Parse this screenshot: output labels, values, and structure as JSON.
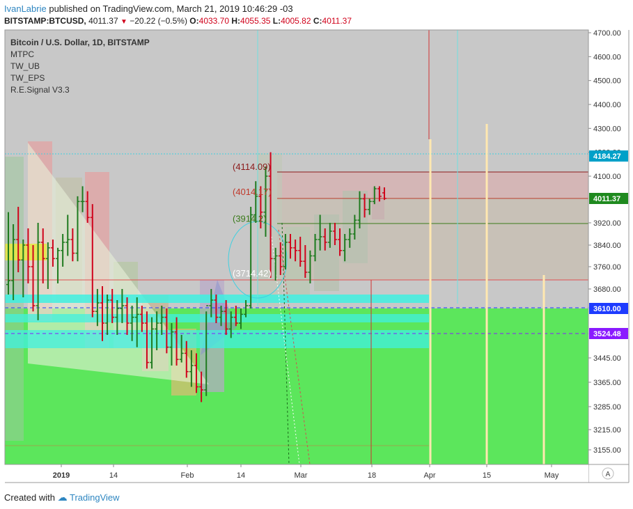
{
  "header": {
    "user": "IvanLabrie",
    "published_text": "published on TradingView.com, March 21, 2019 10:46:29 -03",
    "symbol": "BITSTAMP:BTCUSD,",
    "last": "4011.37",
    "change": "−20.22 (−0.5%)",
    "o_label": "O:",
    "o": "4033.70",
    "h_label": "H:",
    "h": "4055.35",
    "l_label": "L:",
    "l": "4005.82",
    "c_label": "C:",
    "c": "4011.37"
  },
  "legend": {
    "title": "Bitcoin / U.S. Dollar, 1D, BITSTAMP",
    "indicators": [
      "MTPC",
      "TW_UB",
      "TW_EPS",
      "R.E.Signal V3.3"
    ]
  },
  "footer": {
    "created_with": "Created with",
    "brand": "TradingView"
  },
  "colors": {
    "up": "#1f7a1f",
    "down": "#d0021b",
    "zone_green": "#5ce65c",
    "zone_cyan": "#40f0e0",
    "bg": "#c8c8c8"
  },
  "chart_data": {
    "type": "candlestick",
    "y_ticks": [
      "4700.00",
      "4600.00",
      "4500.00",
      "4400.00",
      "4300.00",
      "4200.00",
      "4100.00",
      "3920.00",
      "3840.00",
      "3760.00",
      "3680.00",
      "3445.00",
      "3365.00",
      "3285.00",
      "3215.00",
      "3155.00"
    ],
    "x_ticks": [
      "2019",
      "14",
      "Feb",
      "14",
      "Mar",
      "18",
      "Apr",
      "15",
      "May"
    ],
    "price_badges": [
      {
        "label": "4184.27",
        "value": 4184.27,
        "color": "#00a0c8"
      },
      {
        "label": "4011.37",
        "value": 4011.37,
        "color": "#1f8a1f"
      },
      {
        "label": "3610.00",
        "value": 3610.0,
        "color": "#1e3cff"
      },
      {
        "label": "3524.48",
        "value": 3524.48,
        "color": "#8a1aff"
      }
    ],
    "levels": [
      {
        "label": "(4114.09)",
        "value": 4114.09,
        "color": "#8b1a1a"
      },
      {
        "label": "(4014.17)",
        "value": 4014.17,
        "color": "#c0392b"
      },
      {
        "label": "(3914.2)",
        "value": 3914.2,
        "color": "#3a7a1a"
      },
      {
        "label": "(3714.42)",
        "value": 3714.42,
        "color": "#ffffff"
      }
    ],
    "series": [
      {
        "name": "BITSTAMP:BTCUSD",
        "points": [
          [
            3696,
            3960,
            3660,
            3710
          ],
          [
            3710,
            3915,
            3640,
            3860
          ],
          [
            3860,
            3980,
            3740,
            3785
          ],
          [
            3785,
            3860,
            3650,
            3840
          ],
          [
            3840,
            3900,
            3700,
            3760
          ],
          [
            3760,
            3840,
            3600,
            3620
          ],
          [
            3620,
            3920,
            3570,
            3850
          ],
          [
            3850,
            3900,
            3700,
            3790
          ],
          [
            3790,
            3850,
            3680,
            3830
          ],
          [
            3830,
            3860,
            3760,
            3790
          ],
          [
            3790,
            3830,
            3700,
            3820
          ],
          [
            3820,
            3880,
            3760,
            3850
          ],
          [
            3850,
            3950,
            3800,
            3860
          ],
          [
            3860,
            3900,
            3780,
            3810
          ],
          [
            3810,
            4020,
            3780,
            4000
          ],
          [
            4000,
            4060,
            3960,
            4000
          ],
          [
            4000,
            4040,
            3920,
            3940
          ],
          [
            3940,
            3990,
            3580,
            3600
          ],
          [
            3600,
            3680,
            3550,
            3630
          ],
          [
            3630,
            3690,
            3500,
            3560
          ],
          [
            3560,
            3660,
            3520,
            3640
          ],
          [
            3640,
            3680,
            3560,
            3580
          ],
          [
            3580,
            3640,
            3520,
            3610
          ],
          [
            3610,
            3680,
            3560,
            3620
          ],
          [
            3620,
            3650,
            3520,
            3560
          ],
          [
            3560,
            3620,
            3500,
            3580
          ],
          [
            3580,
            3650,
            3480,
            3590
          ],
          [
            3590,
            3620,
            3530,
            3560
          ],
          [
            3560,
            3600,
            3410,
            3430
          ],
          [
            3430,
            3580,
            3410,
            3540
          ],
          [
            3540,
            3600,
            3470,
            3560
          ],
          [
            3560,
            3620,
            3520,
            3580
          ],
          [
            3580,
            3610,
            3460,
            3480
          ],
          [
            3480,
            3560,
            3420,
            3530
          ],
          [
            3530,
            3580,
            3420,
            3440
          ],
          [
            3440,
            3520,
            3430,
            3460
          ],
          [
            3460,
            3500,
            3380,
            3400
          ],
          [
            3400,
            3470,
            3350,
            3420
          ],
          [
            3420,
            3460,
            3330,
            3350
          ],
          [
            3350,
            3400,
            3300,
            3340
          ],
          [
            3340,
            3600,
            3320,
            3620
          ],
          [
            3620,
            3680,
            3580,
            3640
          ],
          [
            3640,
            3660,
            3560,
            3580
          ],
          [
            3580,
            3620,
            3550,
            3600
          ],
          [
            3600,
            3640,
            3520,
            3540
          ],
          [
            3540,
            3600,
            3510,
            3580
          ],
          [
            3580,
            3620,
            3550,
            3560
          ],
          [
            3560,
            3610,
            3540,
            3590
          ],
          [
            3590,
            3640,
            3580,
            3620
          ],
          [
            3620,
            3980,
            3610,
            3950
          ],
          [
            3950,
            4080,
            3920,
            4020
          ],
          [
            4020,
            4060,
            3900,
            3960
          ],
          [
            3960,
            4140,
            3870,
            4100
          ],
          [
            4100,
            4200,
            3720,
            3790
          ],
          [
            3790,
            3830,
            3710,
            3800
          ],
          [
            3800,
            3850,
            3730,
            3760
          ],
          [
            3760,
            3880,
            3750,
            3850
          ],
          [
            3850,
            3880,
            3790,
            3830
          ],
          [
            3830,
            3860,
            3780,
            3820
          ],
          [
            3820,
            3870,
            3760,
            3780
          ],
          [
            3780,
            3840,
            3720,
            3740
          ],
          [
            3740,
            3820,
            3700,
            3800
          ],
          [
            3800,
            3880,
            3780,
            3860
          ],
          [
            3860,
            3950,
            3820,
            3870
          ],
          [
            3870,
            3900,
            3820,
            3850
          ],
          [
            3850,
            3920,
            3830,
            3890
          ],
          [
            3890,
            3920,
            3840,
            3860
          ],
          [
            3860,
            3900,
            3800,
            3820
          ],
          [
            3820,
            3880,
            3780,
            3860
          ],
          [
            3860,
            3900,
            3830,
            3880
          ],
          [
            3880,
            3950,
            3860,
            3930
          ],
          [
            3930,
            4040,
            3900,
            4010
          ],
          [
            4010,
            4030,
            3940,
            3970
          ],
          [
            3970,
            4010,
            3950,
            4000
          ],
          [
            4000,
            4060,
            3990,
            4050
          ],
          [
            4050,
            4060,
            4000,
            4020
          ],
          [
            4033.7,
            4055.35,
            4005.82,
            4011.37
          ]
        ]
      }
    ]
  }
}
